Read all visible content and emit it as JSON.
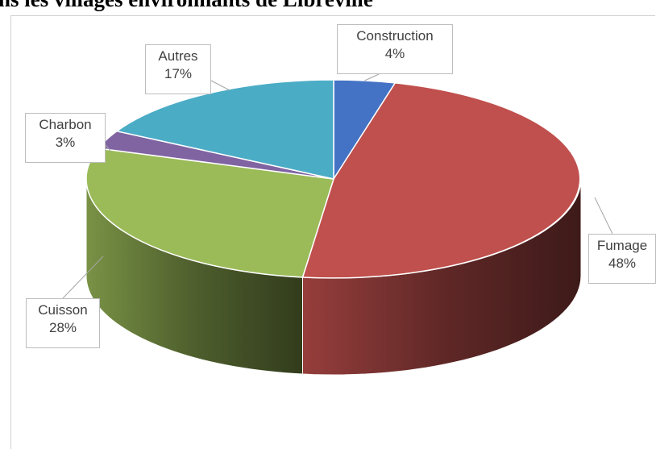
{
  "title": "ns les villages environnants de Libreville",
  "chart_data": {
    "type": "pie",
    "three_d": true,
    "title": "ns les villages environnants de Libreville",
    "slices": [
      {
        "label": "Construction",
        "value": 4,
        "pct": "4%",
        "color": "#4472c4"
      },
      {
        "label": "Fumage",
        "value": 48,
        "pct": "48%",
        "color": "#c0504d"
      },
      {
        "label": "Cuisson",
        "value": 28,
        "pct": "28%",
        "color": "#9bbb59"
      },
      {
        "label": "Charbon",
        "value": 3,
        "pct": "3%",
        "color": "#8064a2"
      },
      {
        "label": "Autres",
        "value": 17,
        "pct": "17%",
        "color": "#4bacc6"
      }
    ]
  }
}
